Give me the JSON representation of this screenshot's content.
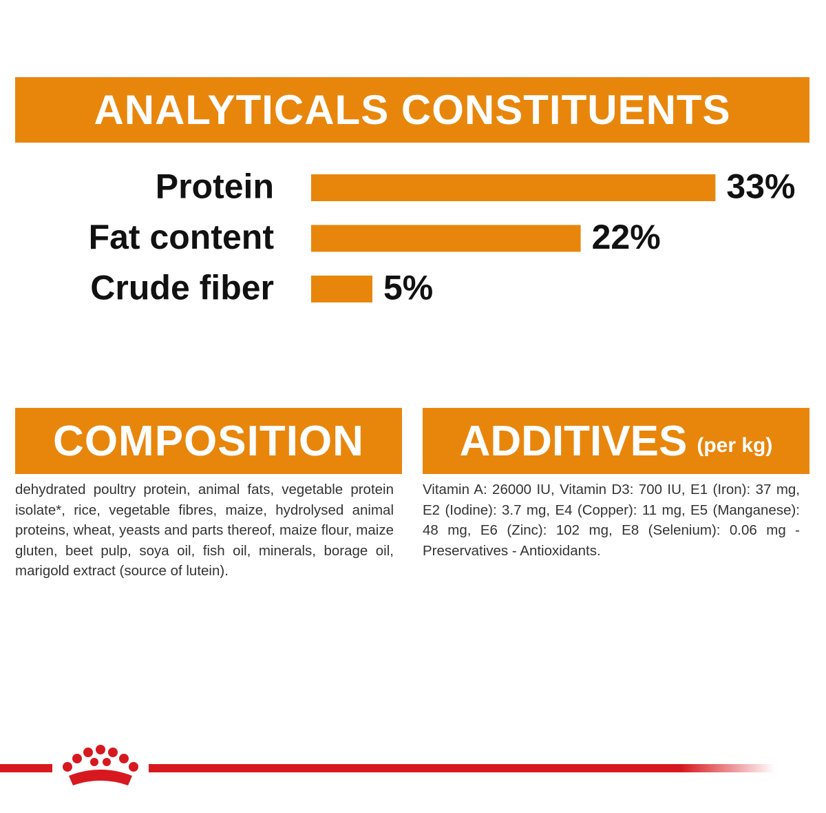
{
  "chart_data": {
    "type": "bar",
    "title": "ANALYTICALS CONSTITUENTS",
    "categories": [
      "Protein",
      "Fat content",
      "Crude fiber"
    ],
    "values": [
      33,
      22,
      5
    ],
    "value_labels": [
      "33%",
      "22%",
      "5%"
    ],
    "color": "#e8860c"
  },
  "composition": {
    "title": "COMPOSITION",
    "text": "dehydrated poultry protein, animal fats, vegetable protein isolate*, rice, vegetable fibres, maize, hydrolysed animal proteins, wheat, yeasts and parts thereof, maize flour, maize gluten, beet pulp, soya oil, fish oil, minerals, borage oil, marigold extract (source of lutein)."
  },
  "additives": {
    "title": "ADDITIVES",
    "subtitle": "(per kg)",
    "text": "Vitamin A: 26000 IU, Vitamin D3: 700 IU, E1 (Iron): 37 mg, E2 (Iodine): 3.7 mg, E4 (Copper): 11 mg, E5 (Manganese): 48 mg, E6 (Zinc): 102 mg, E8 (Selenium): 0.06 mg - Preservatives - Antioxidants."
  }
}
